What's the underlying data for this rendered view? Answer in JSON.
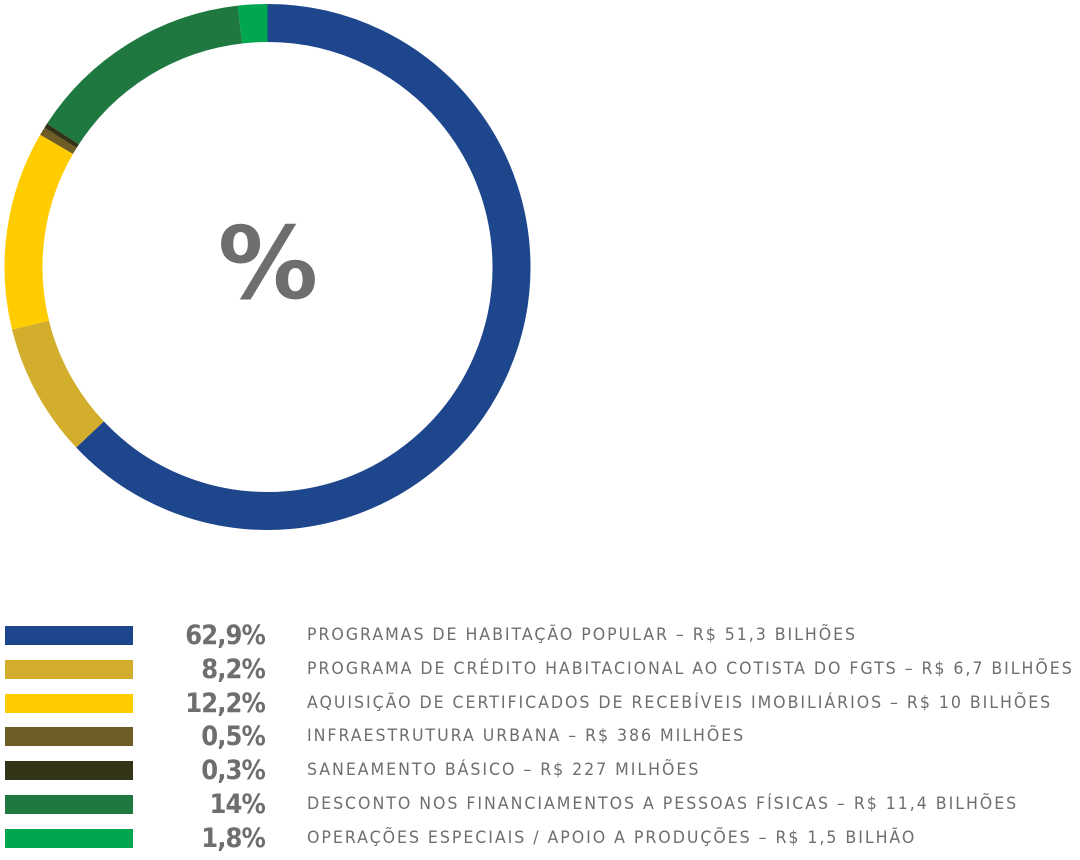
{
  "chart_data": {
    "type": "pie",
    "center_label": "%",
    "series": [
      {
        "value": 62.9,
        "pct_label": "62,9%",
        "label": "PROGRAMAS DE HABITAÇÃO POPULAR – R$ 51,3 BILHÕES",
        "color": "#1e468c"
      },
      {
        "value": 8.2,
        "pct_label": "8,2%",
        "label": "PROGRAMA DE CRÉDITO HABITACIONAL AO COTISTA DO FGTS – R$ 6,7 BILHÕES",
        "color": "#d3ae2c"
      },
      {
        "value": 12.2,
        "pct_label": "12,2%",
        "label": "AQUISIÇÃO DE CERTIFICADOS DE RECEBÍVEIS IMOBILIÁRIOS – R$ 10 BILHÕES",
        "color": "#ffcc00"
      },
      {
        "value": 0.5,
        "pct_label": "0,5%",
        "label": "INFRAESTRUTURA URBANA – R$ 386 MILHÕES",
        "color": "#6e5d26"
      },
      {
        "value": 0.3,
        "pct_label": "0,3%",
        "label": "SANEAMENTO BÁSICO – R$ 227 MILHÕES",
        "color": "#333317"
      },
      {
        "value": 14,
        "pct_label": "14%",
        "label": "DESCONTO NOS FINANCIAMENTOS A PESSOAS FÍSICAS – R$ 11,4 BILHÕES",
        "color": "#1e7840"
      },
      {
        "value": 1.8,
        "pct_label": "1,8%",
        "label": "OPERAÇÕES ESPECIAIS / APOIO A PRODUÇÕES – R$ 1,5 BILHÃO",
        "color": "#00a650"
      }
    ]
  }
}
